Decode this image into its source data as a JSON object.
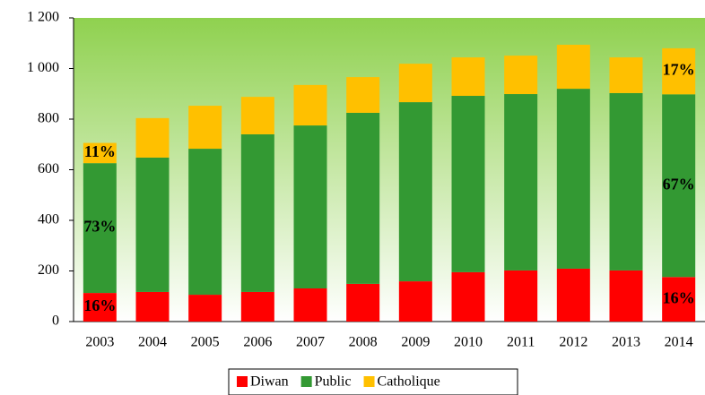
{
  "chart_data": {
    "type": "stacked_bar",
    "categories": [
      "2003",
      "2004",
      "2005",
      "2006",
      "2007",
      "2008",
      "2009",
      "2010",
      "2011",
      "2012",
      "2013",
      "2014"
    ],
    "series": [
      {
        "name": "Diwan",
        "color": "#ff0000",
        "values": [
          113,
          117,
          106,
          117,
          131,
          149,
          159,
          195,
          202,
          209,
          202,
          176
        ]
      },
      {
        "name": "Public",
        "color": "#339933",
        "values": [
          513,
          531,
          577,
          623,
          644,
          676,
          708,
          697,
          697,
          711,
          701,
          722
        ]
      },
      {
        "name": "Catholique",
        "color": "#ffc000",
        "values": [
          80,
          156,
          170,
          148,
          160,
          141,
          152,
          152,
          152,
          174,
          141,
          182
        ]
      }
    ],
    "ylim": [
      0,
      1200
    ],
    "yticks": [
      0,
      200,
      400,
      600,
      800,
      {
        "value": 1000,
        "label": "1 000"
      },
      {
        "value": 1200,
        "label": "1 200"
      }
    ],
    "annotations": [
      {
        "text": "16%",
        "category": "2003",
        "series": "Diwan"
      },
      {
        "text": "73%",
        "category": "2003",
        "series": "Public"
      },
      {
        "text": "11%",
        "category": "2003",
        "series": "Catholique"
      },
      {
        "text": "16%",
        "category": "2014",
        "series": "Diwan"
      },
      {
        "text": "67%",
        "category": "2014",
        "series": "Public"
      },
      {
        "text": "17%",
        "category": "2014",
        "series": "Catholique"
      }
    ],
    "legend": "bottom"
  }
}
